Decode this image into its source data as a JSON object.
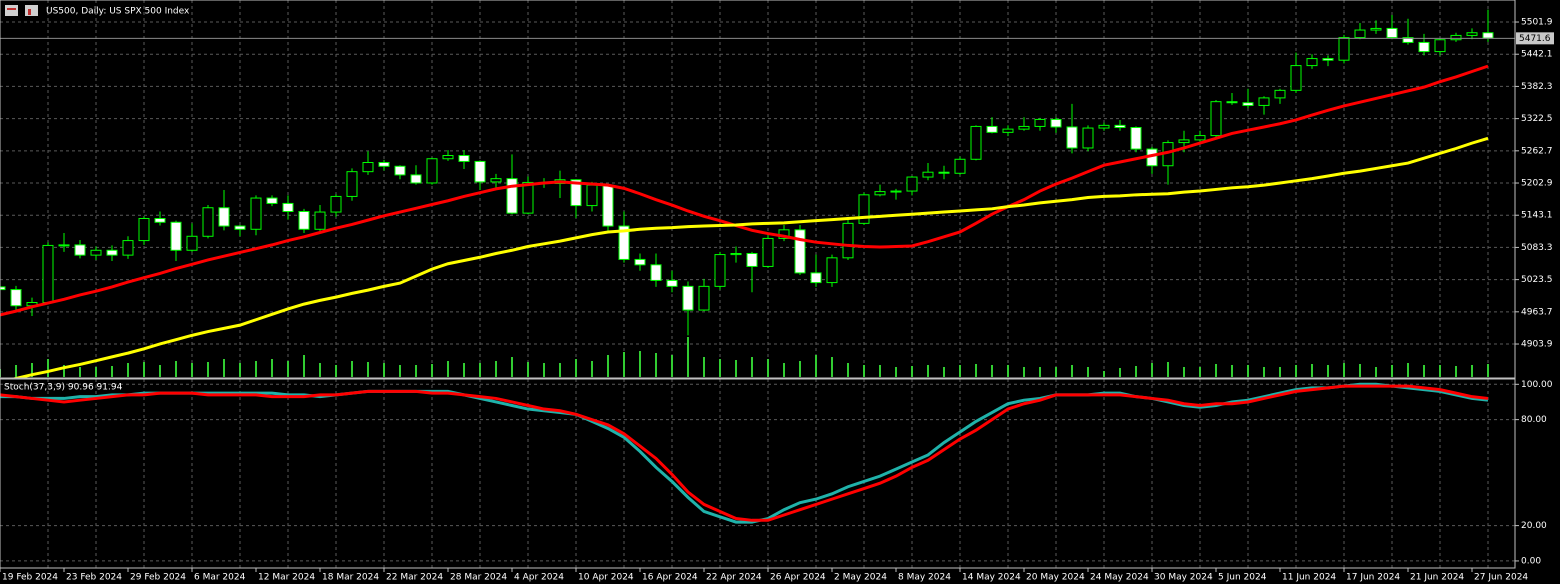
{
  "chart_data": [
    {
      "type": "candlestick",
      "title": "US500, Daily:  US SPX 500 Index",
      "categories": [
        "19 Feb 2024",
        null,
        null,
        null,
        "23 Feb 2024",
        null,
        null,
        null,
        "29 Feb 2024",
        null,
        null,
        null,
        "6 Mar 2024",
        null,
        null,
        null,
        "12 Mar 2024",
        null,
        null,
        null,
        "18 Mar 2024",
        null,
        null,
        null,
        "22 Mar 2024",
        null,
        null,
        null,
        "28 Mar 2024",
        null,
        null,
        null,
        "4 Apr 2024",
        null,
        null,
        null,
        "10 Apr 2024",
        null,
        null,
        null,
        "16 Apr 2024",
        null,
        null,
        null,
        "22 Apr 2024",
        null,
        null,
        null,
        "26 Apr 2024",
        null,
        null,
        null,
        "2 May 2024",
        null,
        null,
        null,
        "8 May 2024",
        null,
        null,
        null,
        "14 May 2024",
        null,
        null,
        null,
        "20 May 2024",
        null,
        null,
        null,
        "24 May 2024",
        null,
        null,
        null,
        "30 May 2024",
        null,
        null,
        null,
        "5 Jun 2024",
        null,
        null,
        null,
        "11 Jun 2024",
        null,
        null,
        null,
        "17 Jun 2024",
        null,
        null,
        null,
        "21 Jun 2024",
        null,
        null,
        null,
        "27 Jun 2024",
        null
      ],
      "open": [
        5010,
        5005,
        4975,
        4981,
        5087,
        5088,
        5069,
        5078,
        5069,
        5096,
        5137,
        5130,
        5078,
        5104,
        5157,
        5123,
        5117,
        5175,
        5165,
        5150,
        5117,
        5149,
        5178,
        5224,
        5241,
        5234,
        5218,
        5203,
        5248,
        5254,
        5243,
        5205,
        5211,
        5147,
        5204,
        5202,
        5209,
        5161,
        5199,
        5123,
        5061,
        5051,
        5022,
        5011,
        4967,
        5011,
        5070,
        5072,
        5048,
        5100,
        5116,
        5036,
        5018,
        5064,
        5128,
        5181,
        5187,
        5188,
        5214,
        5223,
        5221,
        5247,
        5308,
        5297,
        5303,
        5308,
        5321,
        5307,
        5268,
        5305,
        5310,
        5306,
        5266,
        5235,
        5278,
        5283,
        5291,
        5354,
        5352,
        5347,
        5361,
        5375,
        5421,
        5434,
        5431,
        5473,
        5487,
        5490,
        5473,
        5464,
        5447,
        5469,
        5477,
        5482
      ],
      "high": [
        5022,
        5012,
        4990,
        5093,
        5110,
        5097,
        5085,
        5087,
        5104,
        5141,
        5150,
        5133,
        5128,
        5162,
        5190,
        5125,
        5180,
        5180,
        5180,
        5155,
        5162,
        5182,
        5230,
        5262,
        5246,
        5236,
        5236,
        5250,
        5264,
        5264,
        5245,
        5220,
        5256,
        5215,
        5212,
        5226,
        5210,
        5205,
        5200,
        5150,
        5072,
        5072,
        5040,
        5020,
        5025,
        5075,
        5085,
        5075,
        5110,
        5125,
        5125,
        5070,
        5070,
        5140,
        5185,
        5200,
        5192,
        5216,
        5240,
        5235,
        5252,
        5310,
        5325,
        5310,
        5325,
        5324,
        5325,
        5350,
        5310,
        5315,
        5320,
        5308,
        5270,
        5282,
        5300,
        5300,
        5357,
        5370,
        5378,
        5364,
        5378,
        5445,
        5442,
        5440,
        5478,
        5500,
        5505,
        5515,
        5508,
        5480,
        5472,
        5482,
        5490,
        5525
      ],
      "low": [
        4998,
        4963,
        4956,
        4979,
        5075,
        5063,
        5060,
        5058,
        5062,
        5088,
        5124,
        5058,
        5075,
        5100,
        5115,
        5104,
        5106,
        5160,
        5135,
        5110,
        5112,
        5140,
        5170,
        5218,
        5226,
        5210,
        5200,
        5200,
        5244,
        5229,
        5190,
        5190,
        5145,
        5145,
        5194,
        5175,
        5138,
        5150,
        5110,
        5055,
        5040,
        5010,
        5000,
        4920,
        4965,
        5005,
        5055,
        5000,
        5045,
        5095,
        5032,
        5010,
        5010,
        5060,
        5125,
        5178,
        5172,
        5180,
        5208,
        5210,
        5218,
        5245,
        5295,
        5290,
        5300,
        5300,
        5296,
        5258,
        5262,
        5300,
        5300,
        5260,
        5220,
        5200,
        5260,
        5280,
        5288,
        5348,
        5342,
        5330,
        5350,
        5370,
        5415,
        5420,
        5425,
        5470,
        5480,
        5470,
        5460,
        5440,
        5440,
        5465,
        5470,
        5465
      ],
      "close": [
        5005,
        4975,
        4981,
        5087,
        5088,
        5069,
        5078,
        5069,
        5096,
        5137,
        5130,
        5078,
        5104,
        5157,
        5123,
        5117,
        5175,
        5165,
        5150,
        5117,
        5149,
        5178,
        5224,
        5241,
        5234,
        5218,
        5203,
        5248,
        5254,
        5243,
        5205,
        5211,
        5147,
        5204,
        5202,
        5209,
        5161,
        5199,
        5123,
        5061,
        5051,
        5022,
        5011,
        4967,
        5011,
        5070,
        5072,
        5048,
        5100,
        5116,
        5036,
        5018,
        5064,
        5128,
        5181,
        5187,
        5188,
        5214,
        5223,
        5221,
        5247,
        5308,
        5297,
        5303,
        5308,
        5321,
        5307,
        5268,
        5305,
        5310,
        5306,
        5266,
        5235,
        5278,
        5283,
        5291,
        5354,
        5352,
        5347,
        5361,
        5375,
        5421,
        5434,
        5431,
        5473,
        5487,
        5490,
        5473,
        5464,
        5447,
        5469,
        5477,
        5482,
        5472
      ],
      "up_color": "#000000",
      "down_color": "#ffffff",
      "wick_color": "#00ff00",
      "lines": [
        {
          "color": "#ff0000",
          "values": [
            4958,
            4965,
            4973,
            4980,
            4987,
            4995,
            5002,
            5010,
            5019,
            5027,
            5035,
            5044,
            5052,
            5060,
            5067,
            5074,
            5081,
            5088,
            5096,
            5103,
            5111,
            5119,
            5126,
            5134,
            5142,
            5149,
            5156,
            5163,
            5170,
            5178,
            5185,
            5192,
            5197,
            5200,
            5203,
            5205,
            5203,
            5201,
            5199,
            5193,
            5183,
            5172,
            5162,
            5151,
            5141,
            5133,
            5124,
            5115,
            5109,
            5104,
            5098,
            5093,
            5090,
            5087,
            5085,
            5084,
            5085,
            5086,
            5094,
            5103,
            5112,
            5128,
            5145,
            5159,
            5172,
            5188,
            5201,
            5212,
            5224,
            5236,
            5242,
            5248,
            5254,
            5260,
            5268,
            5277,
            5286,
            5295,
            5301,
            5307,
            5313,
            5320,
            5329,
            5338,
            5346,
            5353,
            5360,
            5367,
            5374,
            5381,
            5391,
            5400,
            5410,
            5420
          ]
        },
        {
          "color": "#ffff00",
          "values": [
            4833,
            4840,
            4847,
            4853,
            4860,
            4866,
            4873,
            4880,
            4887,
            4895,
            4904,
            4912,
            4920,
            4927,
            4933,
            4939,
            4949,
            4959,
            4969,
            4978,
            4985,
            4991,
            4998,
            5004,
            5011,
            5017,
            5030,
            5043,
            5053,
            5059,
            5065,
            5072,
            5078,
            5085,
            5090,
            5095,
            5101,
            5107,
            5112,
            5114,
            5117,
            5119,
            5120,
            5122,
            5123,
            5124,
            5125,
            5127,
            5128,
            5129,
            5131,
            5133,
            5135,
            5137,
            5139,
            5141,
            5143,
            5145,
            5147,
            5149,
            5151,
            5153,
            5155,
            5159,
            5162,
            5166,
            5169,
            5172,
            5176,
            5178,
            5179,
            5181,
            5182,
            5183,
            5186,
            5188,
            5191,
            5194,
            5196,
            5199,
            5203,
            5207,
            5211,
            5216,
            5221,
            5225,
            5230,
            5235,
            5240,
            5249,
            5258,
            5267,
            5277,
            5286
          ]
        }
      ],
      "volume": {
        "color": "#32cd32",
        "values": [
          8,
          12,
          14,
          18,
          12,
          10,
          10,
          11,
          14,
          15,
          12,
          16,
          14,
          15,
          18,
          14,
          16,
          18,
          16,
          22,
          14,
          12,
          16,
          15,
          14,
          12,
          12,
          13,
          16,
          14,
          14,
          16,
          20,
          15,
          14,
          14,
          18,
          16,
          22,
          25,
          26,
          24,
          22,
          40,
          20,
          18,
          17,
          20,
          18,
          14,
          16,
          22,
          20,
          14,
          12,
          12,
          10,
          11,
          12,
          10,
          12,
          13,
          12,
          12,
          10,
          10,
          10,
          12,
          10,
          6,
          9,
          11,
          14,
          15,
          10,
          10,
          13,
          12,
          12,
          10,
          10,
          12,
          13,
          12,
          14,
          13,
          10,
          12,
          14,
          12,
          12,
          11,
          12,
          13
        ]
      },
      "last_price": 5471.6,
      "ylim": [
        4840.8,
        5542.8
      ],
      "yticks": [
        5501.9,
        5442.1,
        5382.3,
        5322.5,
        5262.7,
        5202.9,
        5143.1,
        5083.3,
        5023.5,
        4963.7,
        4903.9
      ],
      "grid": true
    },
    {
      "type": "line",
      "title": "Stoch(37,3,9) 90.96 91.94",
      "series": [
        {
          "color": "#20b2aa",
          "values": [
            93,
            93,
            92,
            92,
            92,
            93,
            93,
            94,
            94,
            95,
            95,
            95,
            95,
            95,
            95,
            95,
            95,
            95,
            94,
            94,
            93,
            94,
            95,
            96,
            96,
            96,
            96,
            96,
            96,
            94,
            92,
            90,
            88,
            86,
            85,
            84,
            83,
            79,
            75,
            70,
            62,
            53,
            45,
            36,
            28,
            25,
            22,
            22,
            24,
            29,
            33,
            35,
            38,
            42,
            45,
            48,
            52,
            56,
            60,
            67,
            73,
            79,
            84,
            89,
            91,
            92,
            94,
            94,
            94,
            95,
            95,
            93,
            92,
            90,
            88,
            87,
            88,
            90,
            91,
            93,
            95,
            97,
            98,
            98,
            99,
            100,
            100,
            99,
            98,
            97,
            96,
            94,
            92,
            91
          ]
        },
        {
          "color": "#ff0000",
          "values": [
            94,
            93,
            92,
            91,
            90,
            91,
            92,
            93,
            94,
            94,
            95,
            95,
            95,
            94,
            94,
            94,
            94,
            93,
            93,
            93,
            94,
            94,
            95,
            96,
            96,
            96,
            96,
            95,
            95,
            94,
            93,
            92,
            90,
            88,
            86,
            85,
            83,
            80,
            77,
            72,
            65,
            58,
            49,
            39,
            32,
            28,
            24,
            23,
            23,
            26,
            29,
            32,
            35,
            38,
            41,
            44,
            48,
            53,
            57,
            63,
            69,
            74,
            80,
            86,
            89,
            91,
            94,
            94,
            94,
            94,
            94,
            93,
            92,
            91,
            89,
            88,
            89,
            89,
            90,
            92,
            94,
            96,
            97,
            98,
            99,
            99,
            99,
            99,
            99,
            98,
            97,
            95,
            93,
            92
          ]
        }
      ],
      "ylim": [
        -4,
        103
      ],
      "yticks": [
        {
          "value": 100,
          "label": "100.00"
        },
        {
          "value": 80,
          "label": "80.00"
        },
        {
          "value": 20,
          "label": "20.00"
        },
        {
          "value": 0,
          "label": "0.00"
        }
      ],
      "grid": true
    }
  ]
}
